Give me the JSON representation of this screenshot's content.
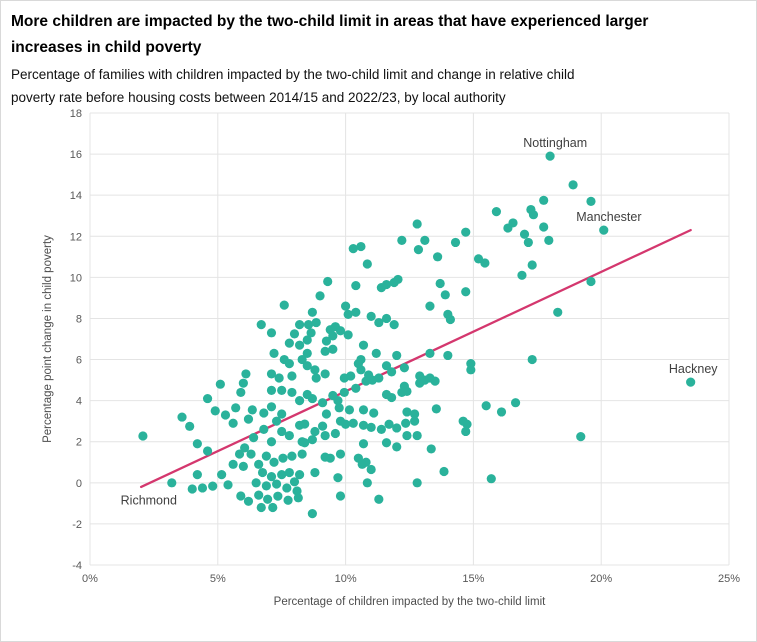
{
  "header": {
    "title": "More children are impacted by the two-child limit in areas that have experienced larger\nincreases in child poverty",
    "subtitle": "Percentage of families with children impacted by the two-child limit and change in relative child\npoverty rate before housing costs between 2014/15 and 2022/23, by local authority"
  },
  "chart_data": {
    "type": "scatter",
    "title": "More children are impacted by the two-child limit in areas that have experienced larger increases in child poverty",
    "subtitle": "Percentage of families with children impacted by the two-child limit and change in relative child poverty rate before housing costs between 2014/15 and 2022/23, by local authority",
    "xlabel": "Percentage of children impacted by the two-child limit",
    "ylabel": "Percentage point change in child poverty",
    "xlim": [
      0,
      25
    ],
    "ylim": [
      -4,
      18
    ],
    "grid": true,
    "legend": "none",
    "x_ticks": [
      {
        "value": 0,
        "label": "0%"
      },
      {
        "value": 5,
        "label": "5%"
      },
      {
        "value": 10,
        "label": "10%"
      },
      {
        "value": 15,
        "label": "15%"
      },
      {
        "value": 20,
        "label": "20%"
      },
      {
        "value": 25,
        "label": "25%"
      }
    ],
    "y_ticks": [
      {
        "value": -4,
        "label": "-4"
      },
      {
        "value": -2,
        "label": "-2"
      },
      {
        "value": 0,
        "label": "0"
      },
      {
        "value": 2,
        "label": "2"
      },
      {
        "value": 4,
        "label": "4"
      },
      {
        "value": 6,
        "label": "6"
      },
      {
        "value": 8,
        "label": "8"
      },
      {
        "value": 10,
        "label": "10"
      },
      {
        "value": 12,
        "label": "12"
      },
      {
        "value": 14,
        "label": "14"
      },
      {
        "value": 16,
        "label": "16"
      },
      {
        "value": 18,
        "label": "18"
      }
    ],
    "colors": {
      "point": "#2ab29b",
      "trend": "#d4376e",
      "grid": "#e4e4e4",
      "tick_text": "#595959",
      "axis_text": "#4d4d4d",
      "label_text": "#404040"
    },
    "trend_line": {
      "x1": 2.0,
      "y1": -0.2,
      "x2": 23.5,
      "y2": 12.3
    },
    "labeled_points": [
      {
        "label": "Nottingham",
        "x": 18.0,
        "y": 15.9,
        "label_x": 18.2,
        "label_y": 16.55
      },
      {
        "label": "Manchester",
        "x": 20.1,
        "y": 12.3,
        "label_x": 20.3,
        "label_y": 12.95
      },
      {
        "label": "Hackney",
        "x": 23.5,
        "y": 4.9,
        "label_x": 23.6,
        "label_y": 5.55
      },
      {
        "label": "Richmond",
        "x": 3.2,
        "y": 0.0,
        "label_x": 2.3,
        "label_y": -0.85
      }
    ],
    "points": [
      [
        10.3,
        11.4
      ],
      [
        10.6,
        11.5
      ],
      [
        12.2,
        11.8
      ],
      [
        10.85,
        10.65
      ],
      [
        12.8,
        12.6
      ],
      [
        13.1,
        11.8
      ],
      [
        12.85,
        11.35
      ],
      [
        13.6,
        11.0
      ],
      [
        14.3,
        11.7
      ],
      [
        14.7,
        12.2
      ],
      [
        15.2,
        10.9
      ],
      [
        15.45,
        10.7
      ],
      [
        16.35,
        12.4
      ],
      [
        16.55,
        12.65
      ],
      [
        17.0,
        12.1
      ],
      [
        17.15,
        11.7
      ],
      [
        17.25,
        13.3
      ],
      [
        17.35,
        13.05
      ],
      [
        17.75,
        12.45
      ],
      [
        17.95,
        11.8
      ],
      [
        15.9,
        13.2
      ],
      [
        17.75,
        13.75
      ],
      [
        18.9,
        14.5
      ],
      [
        19.6,
        13.7
      ],
      [
        16.9,
        10.1
      ],
      [
        17.3,
        10.6
      ],
      [
        19.6,
        9.8
      ],
      [
        18.3,
        8.3
      ],
      [
        9.3,
        9.8
      ],
      [
        10.4,
        9.6
      ],
      [
        9.0,
        9.1
      ],
      [
        11.4,
        9.5
      ],
      [
        11.6,
        9.65
      ],
      [
        11.9,
        9.75
      ],
      [
        12.05,
        9.9
      ],
      [
        13.7,
        9.7
      ],
      [
        13.9,
        9.15
      ],
      [
        14.7,
        9.3
      ],
      [
        10.0,
        8.6
      ],
      [
        10.1,
        8.2
      ],
      [
        10.4,
        8.3
      ],
      [
        8.7,
        8.3
      ],
      [
        11.0,
        8.1
      ],
      [
        13.3,
        8.6
      ],
      [
        14.0,
        8.2
      ],
      [
        14.1,
        7.95
      ],
      [
        7.6,
        8.65
      ],
      [
        6.7,
        7.7
      ],
      [
        7.1,
        7.3
      ],
      [
        8.0,
        7.25
      ],
      [
        8.2,
        7.7
      ],
      [
        7.8,
        6.8
      ],
      [
        8.2,
        6.7
      ],
      [
        7.2,
        6.3
      ],
      [
        7.6,
        6.0
      ],
      [
        8.3,
        6.0
      ],
      [
        8.55,
        7.7
      ],
      [
        8.85,
        7.8
      ],
      [
        9.6,
        7.6
      ],
      [
        9.8,
        7.4
      ],
      [
        10.1,
        7.2
      ],
      [
        9.4,
        7.45
      ],
      [
        9.5,
        7.15
      ],
      [
        9.25,
        6.9
      ],
      [
        8.65,
        7.3
      ],
      [
        8.5,
        6.95
      ],
      [
        11.3,
        7.8
      ],
      [
        11.6,
        8.0
      ],
      [
        11.9,
        7.7
      ],
      [
        8.5,
        6.3
      ],
      [
        9.2,
        6.4
      ],
      [
        9.5,
        6.5
      ],
      [
        10.7,
        6.7
      ],
      [
        10.6,
        6.0
      ],
      [
        11.2,
        6.3
      ],
      [
        12.0,
        6.2
      ],
      [
        13.3,
        6.3
      ],
      [
        14.0,
        6.2
      ],
      [
        17.3,
        6.0
      ],
      [
        7.8,
        5.8
      ],
      [
        14.9,
        5.8
      ],
      [
        14.9,
        5.5
      ],
      [
        8.5,
        5.7
      ],
      [
        8.8,
        5.5
      ],
      [
        9.2,
        5.3
      ],
      [
        8.85,
        5.1
      ],
      [
        10.5,
        5.8
      ],
      [
        10.6,
        5.5
      ],
      [
        11.6,
        5.7
      ],
      [
        11.8,
        5.4
      ],
      [
        12.3,
        5.6
      ],
      [
        7.1,
        5.3
      ],
      [
        7.4,
        5.1
      ],
      [
        7.9,
        5.2
      ],
      [
        6.1,
        5.3
      ],
      [
        6.0,
        4.85
      ],
      [
        5.1,
        4.8
      ],
      [
        9.95,
        5.1
      ],
      [
        10.2,
        5.2
      ],
      [
        10.9,
        5.25
      ],
      [
        10.8,
        4.95
      ],
      [
        11.05,
        5.0
      ],
      [
        11.3,
        5.1
      ],
      [
        12.9,
        5.2
      ],
      [
        12.9,
        4.85
      ],
      [
        13.1,
        5.0
      ],
      [
        13.3,
        5.1
      ],
      [
        13.5,
        4.95
      ],
      [
        12.3,
        4.7
      ],
      [
        10.4,
        4.6
      ],
      [
        7.1,
        4.5
      ],
      [
        7.5,
        4.5
      ],
      [
        7.9,
        4.4
      ],
      [
        5.9,
        4.4
      ],
      [
        4.6,
        4.1
      ],
      [
        12.4,
        4.45
      ],
      [
        12.2,
        4.4
      ],
      [
        11.6,
        4.3
      ],
      [
        11.8,
        4.15
      ],
      [
        9.95,
        4.4
      ],
      [
        9.5,
        4.25
      ],
      [
        9.7,
        4.0
      ],
      [
        9.1,
        3.9
      ],
      [
        8.7,
        4.1
      ],
      [
        8.5,
        4.3
      ],
      [
        9.75,
        3.65
      ],
      [
        10.15,
        3.55
      ],
      [
        10.7,
        3.55
      ],
      [
        12.4,
        3.45
      ],
      [
        13.55,
        3.6
      ],
      [
        16.65,
        3.9
      ],
      [
        15.5,
        3.75
      ],
      [
        7.1,
        3.7
      ],
      [
        8.2,
        4.0
      ],
      [
        4.9,
        3.5
      ],
      [
        5.7,
        3.65
      ],
      [
        6.35,
        3.55
      ],
      [
        16.1,
        3.45
      ],
      [
        2.07,
        2.28
      ],
      [
        3.6,
        3.2
      ],
      [
        3.9,
        2.75
      ],
      [
        5.3,
        3.3
      ],
      [
        5.6,
        2.9
      ],
      [
        6.4,
        2.2
      ],
      [
        6.8,
        2.6
      ],
      [
        7.1,
        2.0
      ],
      [
        7.5,
        2.5
      ],
      [
        7.8,
        2.3
      ],
      [
        8.2,
        2.8
      ],
      [
        8.3,
        2.0
      ],
      [
        7.3,
        3.0
      ],
      [
        6.2,
        3.1
      ],
      [
        6.8,
        3.4
      ],
      [
        7.5,
        3.35
      ],
      [
        9.25,
        3.35
      ],
      [
        11.1,
        3.4
      ],
      [
        12.7,
        3.35
      ],
      [
        8.4,
        2.86
      ],
      [
        8.8,
        2.5
      ],
      [
        9.1,
        2.76
      ],
      [
        9.8,
        3.0
      ],
      [
        10.0,
        2.85
      ],
      [
        10.3,
        2.9
      ],
      [
        10.7,
        2.8
      ],
      [
        11.0,
        2.7
      ],
      [
        11.4,
        2.6
      ],
      [
        11.7,
        2.85
      ],
      [
        12.0,
        2.67
      ],
      [
        12.35,
        2.9
      ],
      [
        12.7,
        3.0
      ],
      [
        12.8,
        2.3
      ],
      [
        14.75,
        2.85
      ],
      [
        14.6,
        3.0
      ],
      [
        14.7,
        2.5
      ],
      [
        8.7,
        2.1
      ],
      [
        9.2,
        2.3
      ],
      [
        9.6,
        2.4
      ],
      [
        12.4,
        2.3
      ],
      [
        19.2,
        2.25
      ],
      [
        8.4,
        1.95
      ],
      [
        10.7,
        1.9
      ],
      [
        11.6,
        1.95
      ],
      [
        12.0,
        1.75
      ],
      [
        13.35,
        1.65
      ],
      [
        10.5,
        1.2
      ],
      [
        10.8,
        1.0
      ],
      [
        9.8,
        1.4
      ],
      [
        9.4,
        1.2
      ],
      [
        9.2,
        1.25
      ],
      [
        10.65,
        0.9
      ],
      [
        11.0,
        0.65
      ],
      [
        4.2,
        1.9
      ],
      [
        4.6,
        1.55
      ],
      [
        5.85,
        1.4
      ],
      [
        6.05,
        1.7
      ],
      [
        6.3,
        1.4
      ],
      [
        5.6,
        0.9
      ],
      [
        6.0,
        0.8
      ],
      [
        6.6,
        0.9
      ],
      [
        6.9,
        1.3
      ],
      [
        7.2,
        1.0
      ],
      [
        7.55,
        1.2
      ],
      [
        7.9,
        1.3
      ],
      [
        8.3,
        1.4
      ],
      [
        13.85,
        0.55
      ],
      [
        4.2,
        0.4
      ],
      [
        4.0,
        -0.3
      ],
      [
        4.4,
        -0.25
      ],
      [
        4.8,
        -0.16
      ],
      [
        5.15,
        0.4
      ],
      [
        5.4,
        -0.1
      ],
      [
        6.75,
        0.5
      ],
      [
        7.1,
        0.3
      ],
      [
        7.5,
        0.4
      ],
      [
        7.8,
        0.5
      ],
      [
        8.2,
        0.4
      ],
      [
        6.5,
        0.0
      ],
      [
        6.9,
        -0.15
      ],
      [
        7.3,
        -0.06
      ],
      [
        7.7,
        -0.25
      ],
      [
        8.1,
        -0.4
      ],
      [
        8.8,
        0.5
      ],
      [
        9.7,
        0.25
      ],
      [
        10.85,
        0.0
      ],
      [
        12.8,
        0.0
      ],
      [
        15.7,
        0.2
      ],
      [
        8.0,
        0.05
      ],
      [
        5.9,
        -0.64
      ],
      [
        6.2,
        -0.9
      ],
      [
        6.6,
        -0.6
      ],
      [
        6.95,
        -0.8
      ],
      [
        7.35,
        -0.65
      ],
      [
        7.75,
        -0.85
      ],
      [
        8.15,
        -0.73
      ],
      [
        7.15,
        -1.2
      ],
      [
        6.7,
        -1.2
      ],
      [
        9.8,
        -0.64
      ],
      [
        11.3,
        -0.8
      ],
      [
        8.7,
        -1.5
      ]
    ]
  }
}
